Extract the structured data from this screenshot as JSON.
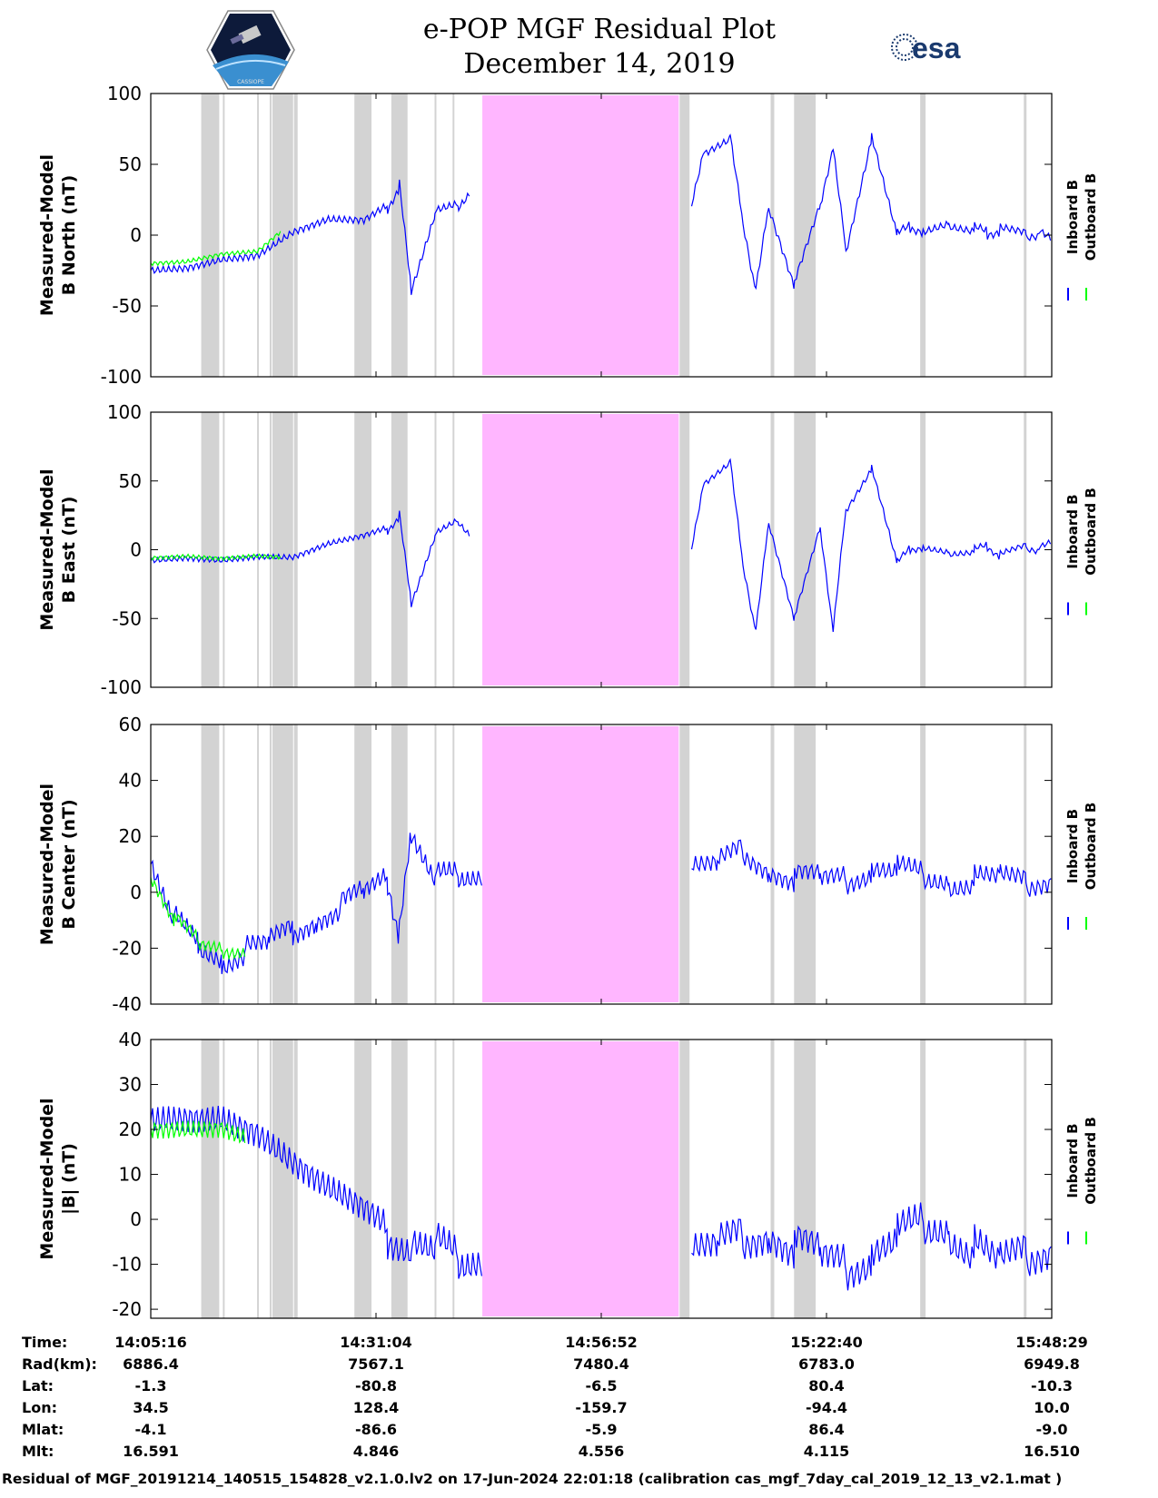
{
  "header": {
    "title_line1": "e-POP MGF Residual Plot",
    "title_line2": "December 14, 2019",
    "logo_left_text": "CASSIOPE",
    "logo_right_text": "esa"
  },
  "colors": {
    "inboard": "#0000ff",
    "outboard": "#00ff00",
    "gap_shade": "#d3d3d3",
    "no_data": "#ffb6ff"
  },
  "chart_data": [
    {
      "type": "line",
      "ylabel_line1": "Measured-Model",
      "ylabel_line2": "B North (nT)",
      "ylim": [
        -100,
        100
      ],
      "yticks": [
        100,
        50,
        0,
        -50,
        -100
      ],
      "legend": [
        "Inboard B",
        "Outboard B"
      ],
      "series": [
        {
          "name": "Inboard B",
          "color": "#0000ff",
          "x": [
            0,
            3,
            6,
            9,
            12,
            15,
            18,
            20,
            21,
            22,
            24,
            26,
            27,
            30,
            31,
            33,
            34,
            35,
            36,
            38,
            40,
            41,
            42,
            44,
            46,
            47,
            48,
            50,
            52,
            53,
            54,
            56,
            57,
            58
          ],
          "values": [
            -25,
            -22,
            -15,
            -12,
            4,
            12,
            10,
            20,
            35,
            -40,
            15,
            20,
            30,
            20,
            60,
            70,
            10,
            -40,
            20,
            -35,
            20,
            60,
            -10,
            70,
            0,
            5,
            3,
            8,
            5,
            2,
            4,
            0,
            1,
            -5
          ],
          "band": 10
        },
        {
          "name": "Outboard B",
          "color": "#00ff00",
          "x": [
            0,
            3,
            6,
            9,
            11
          ],
          "values": [
            -20,
            -18,
            -12,
            -10,
            4
          ],
          "band": 6
        }
      ]
    },
    {
      "type": "line",
      "ylabel_line1": "Measured-Model",
      "ylabel_line2": "B East (nT)",
      "ylim": [
        -100,
        100
      ],
      "yticks": [
        100,
        50,
        0,
        -50,
        -100
      ],
      "legend": [
        "Inboard B",
        "Outboard B"
      ],
      "series": [
        {
          "name": "Inboard B",
          "color": "#0000ff",
          "x": [
            0,
            3,
            6,
            9,
            12,
            15,
            18,
            20,
            21,
            22,
            24,
            26,
            27,
            30,
            31,
            33,
            34,
            35,
            36,
            38,
            40,
            41,
            42,
            44,
            46,
            47,
            48,
            50,
            52,
            53,
            54,
            56,
            57,
            58
          ],
          "values": [
            -8,
            -5,
            -6,
            -3,
            -4,
            5,
            10,
            15,
            25,
            -40,
            10,
            20,
            10,
            0,
            50,
            65,
            -10,
            -60,
            20,
            -50,
            15,
            -60,
            30,
            60,
            -10,
            0,
            2,
            -2,
            0,
            3,
            -4,
            2,
            0,
            4
          ],
          "band": 8
        },
        {
          "name": "Outboard B",
          "color": "#00ff00",
          "x": [
            0,
            3,
            6,
            9,
            11
          ],
          "values": [
            -6,
            -4,
            -5,
            -3,
            -4
          ],
          "band": 6
        }
      ]
    },
    {
      "type": "line",
      "ylabel_line1": "Measured-Model",
      "ylabel_line2": "B Center (nT)",
      "ylim": [
        -40,
        60
      ],
      "yticks": [
        60,
        40,
        20,
        0,
        -20,
        -40
      ],
      "legend": [
        "Inboard B",
        "Outboard B"
      ],
      "series": [
        {
          "name": "Inboard B",
          "color": "#0000ff",
          "x": [
            0,
            2,
            4,
            6,
            8,
            10,
            12,
            14,
            16,
            18,
            20,
            21,
            22,
            24,
            26,
            28,
            30,
            32,
            34,
            36,
            38,
            40,
            42,
            44,
            46,
            48,
            50,
            52,
            54,
            56,
            58
          ],
          "values": [
            10,
            -10,
            -20,
            -25,
            -20,
            -18,
            -14,
            -10,
            -5,
            0,
            5,
            -15,
            20,
            5,
            5,
            5,
            8,
            10,
            15,
            8,
            5,
            5,
            5,
            8,
            8,
            5,
            3,
            5,
            5,
            3,
            5
          ],
          "band": 12
        },
        {
          "name": "Outboard B",
          "color": "#00ff00",
          "x": [
            0,
            2,
            4,
            6,
            8
          ],
          "values": [
            5,
            -10,
            -18,
            -20,
            -20
          ],
          "band": 8
        }
      ]
    },
    {
      "type": "line",
      "ylabel_line1": "Measured-Model",
      "ylabel_line2": "|B| (nT)",
      "ylim": [
        -22,
        40
      ],
      "yticks": [
        40,
        30,
        20,
        10,
        0,
        -10,
        -20
      ],
      "legend": [
        "Inboard B",
        "Outboard B"
      ],
      "series": [
        {
          "name": "Inboard B",
          "color": "#0000ff",
          "x": [
            0,
            3,
            6,
            9,
            12,
            15,
            18,
            20,
            22,
            24,
            26,
            28,
            30,
            32,
            34,
            36,
            38,
            40,
            42,
            44,
            46,
            48,
            50,
            52,
            54,
            56,
            58
          ],
          "values": [
            22,
            24,
            25,
            22,
            15,
            8,
            2,
            -3,
            -5,
            -6,
            -10,
            -10,
            -8,
            -6,
            -4,
            -3,
            -6,
            -8,
            -10,
            -8,
            -4,
            -2,
            -3,
            -6,
            -10,
            -8,
            -6
          ],
          "band": 12
        },
        {
          "name": "Outboard B",
          "color": "#00ff00",
          "x": [
            0,
            3,
            6,
            8
          ],
          "values": [
            20,
            21,
            22,
            20
          ],
          "band": 8
        }
      ]
    }
  ],
  "table": {
    "row_labels": [
      "Time:",
      "Rad(km):",
      "Lat:",
      "Lon:",
      "Mlat:",
      "Mlt:"
    ],
    "columns": [
      [
        "14:05:16",
        "6886.4",
        "-1.3",
        "34.5",
        "-4.1",
        "16.591"
      ],
      [
        "14:31:04",
        "7567.1",
        "-80.8",
        "128.4",
        "-86.6",
        "4.846"
      ],
      [
        "14:56:52",
        "7480.4",
        "-6.5",
        "-159.7",
        "-5.9",
        "4.556"
      ],
      [
        "15:22:40",
        "6783.0",
        "80.4",
        "-94.4",
        "86.4",
        "4.115"
      ],
      [
        "15:48:29",
        "6949.8",
        "-10.3",
        "10.0",
        "-9.0",
        "16.510"
      ]
    ]
  },
  "footer": "Residual of MGF_20191214_140515_154828_v2.1.0.lv2 on 17-Jun-2024 22:01:18 (calibration cas_mgf_7day_cal_2019_12_13_v2.1.mat )"
}
